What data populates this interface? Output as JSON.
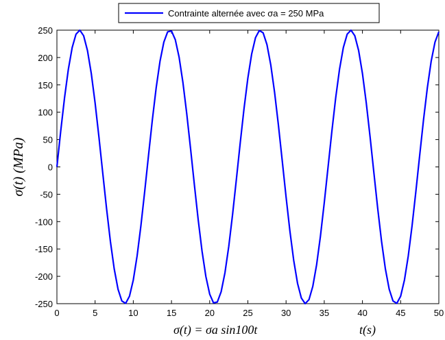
{
  "chart_data": {
    "type": "line",
    "title": "",
    "xlabel": "t(s)",
    "ylabel": "σ(t) (MPa)",
    "xlabel_extra": "σ(t) = σa sin100t",
    "xlim": [
      0,
      50
    ],
    "ylim": [
      -250,
      250
    ],
    "xticks": [
      0,
      5,
      10,
      15,
      20,
      25,
      30,
      35,
      40,
      45,
      50
    ],
    "yticks": [
      250,
      200,
      150,
      100,
      50,
      0,
      -50,
      -100,
      -150,
      -200,
      -250
    ],
    "grid": false,
    "legend_position": "top-right",
    "series": [
      {
        "name": "Contrainte alternée avec  σa = 250 MPa",
        "color": "#0000ff",
        "amplitude": 250,
        "angular_frequency": 100,
        "x_start": 0,
        "x_end": 50,
        "x_step": 0.5
      }
    ]
  }
}
